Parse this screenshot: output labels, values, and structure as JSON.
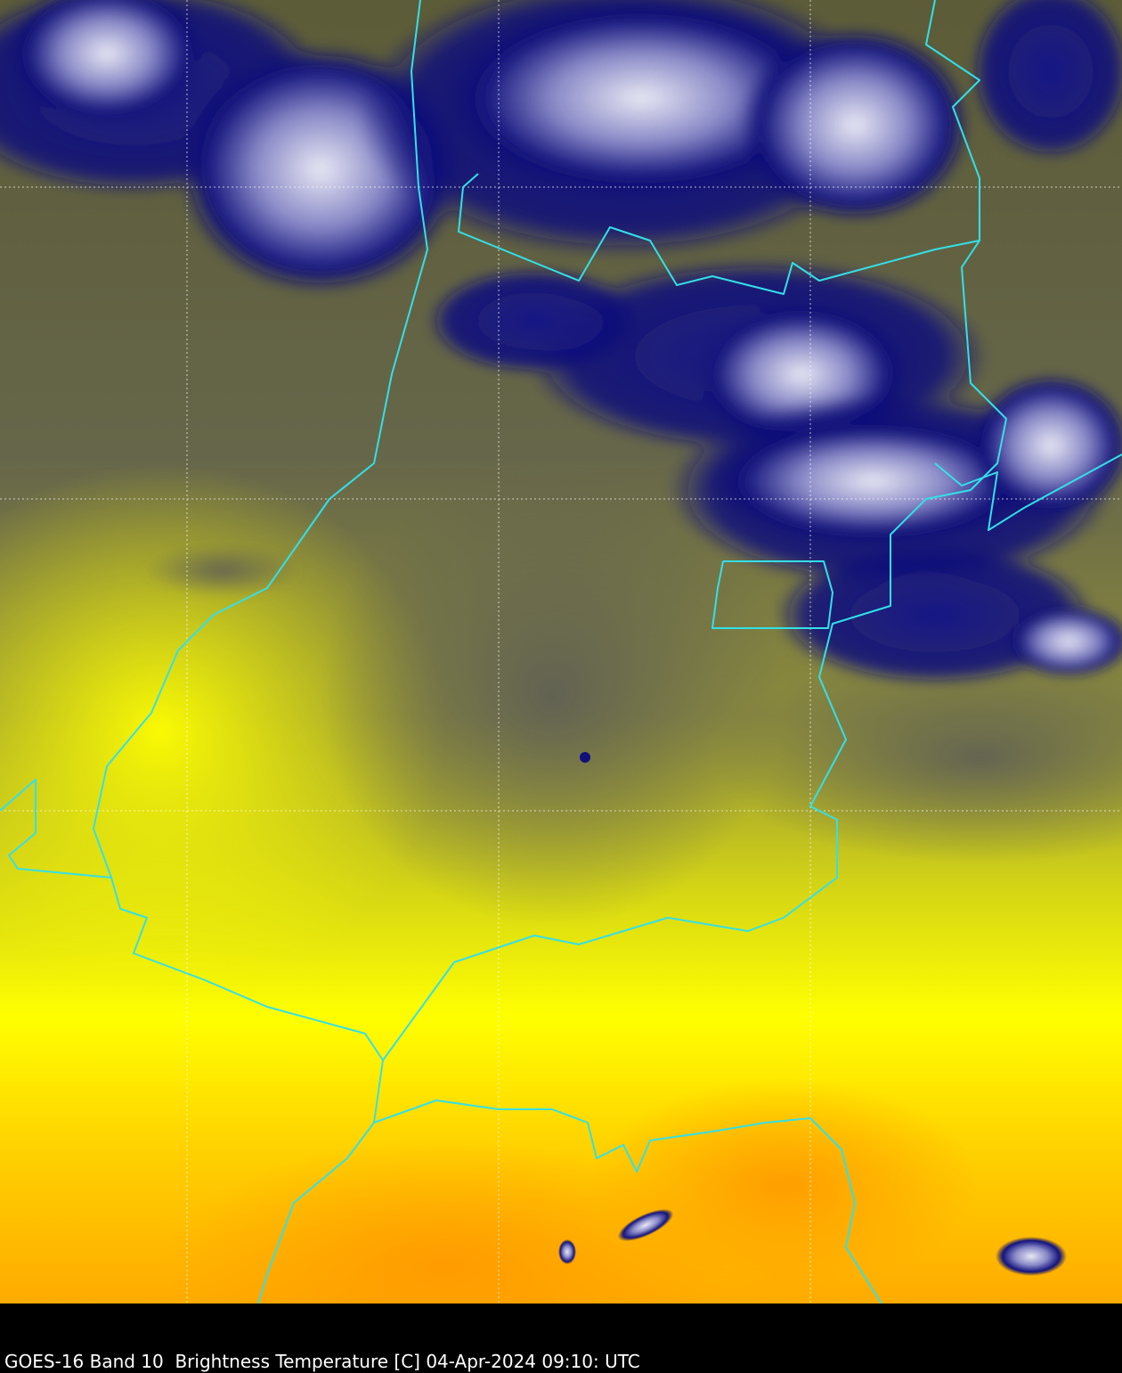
{
  "caption": "GOES-16 Band 10  Brightness Temperature [C] 04-Apr-2024 09:10: UTC"
}
